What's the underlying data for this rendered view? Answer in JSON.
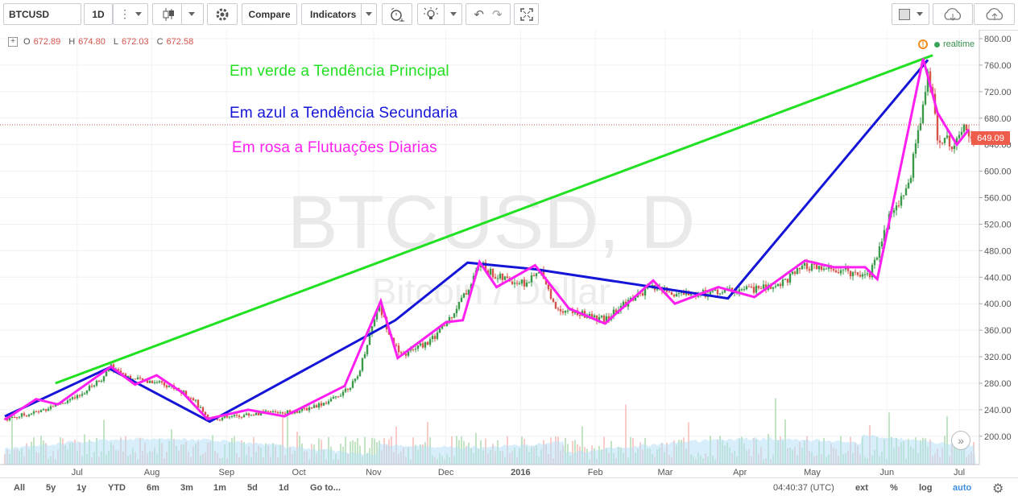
{
  "toolbar": {
    "symbol": "BTCUSD",
    "interval": "1D",
    "compare_label": "Compare",
    "indicators_label": "Indicators"
  },
  "legend": {
    "o_label": "O",
    "o_value": "672.89",
    "h_label": "H",
    "h_value": "674.80",
    "l_label": "L",
    "l_value": "672.03",
    "c_label": "C",
    "c_value": "672.58"
  },
  "annotations": {
    "green": "Em verde a Tendência Principal",
    "blue": "Em azul a Tendência Secundaria",
    "pink": "Em rosa a Flutuações Diarias"
  },
  "watermark": {
    "main": "BTCUSD, D",
    "sub": "Bitcoin / Dollar"
  },
  "status": {
    "realtime": "realtime",
    "current_price": "649.09"
  },
  "chart_data": {
    "type": "candlestick",
    "ylim": [
      160,
      805
    ],
    "y_ticks": [
      "800.00",
      "760.00",
      "720.00",
      "680.00",
      "640.00",
      "600.00",
      "560.00",
      "520.00",
      "480.00",
      "440.00",
      "400.00",
      "360.00",
      "320.00",
      "280.00",
      "240.00",
      "200.00"
    ],
    "x_ticks": [
      "Jul",
      "Aug",
      "Sep",
      "Oct",
      "Nov",
      "Dec",
      "2016",
      "Feb",
      "Mar",
      "Apr",
      "May",
      "Jun",
      "Jul"
    ],
    "price_path": [
      {
        "date": "2015-06-01",
        "price": 226
      },
      {
        "date": "2015-06-15",
        "price": 237
      },
      {
        "date": "2015-06-22",
        "price": 248
      },
      {
        "date": "2015-07-01",
        "price": 258
      },
      {
        "date": "2015-07-12",
        "price": 290
      },
      {
        "date": "2015-07-15",
        "price": 305
      },
      {
        "date": "2015-07-25",
        "price": 285
      },
      {
        "date": "2015-08-05",
        "price": 282
      },
      {
        "date": "2015-08-18",
        "price": 258
      },
      {
        "date": "2015-08-24",
        "price": 225
      },
      {
        "date": "2015-09-01",
        "price": 228
      },
      {
        "date": "2015-09-15",
        "price": 235
      },
      {
        "date": "2015-10-01",
        "price": 238
      },
      {
        "date": "2015-10-15",
        "price": 255
      },
      {
        "date": "2015-10-25",
        "price": 285
      },
      {
        "date": "2015-11-03",
        "price": 400
      },
      {
        "date": "2015-11-06",
        "price": 370
      },
      {
        "date": "2015-11-12",
        "price": 320
      },
      {
        "date": "2015-11-25",
        "price": 345
      },
      {
        "date": "2015-12-01",
        "price": 370
      },
      {
        "date": "2015-12-10",
        "price": 420
      },
      {
        "date": "2015-12-15",
        "price": 460
      },
      {
        "date": "2015-12-22",
        "price": 440
      },
      {
        "date": "2016-01-03",
        "price": 430
      },
      {
        "date": "2016-01-10",
        "price": 450
      },
      {
        "date": "2016-01-15",
        "price": 395
      },
      {
        "date": "2016-01-25",
        "price": 385
      },
      {
        "date": "2016-02-05",
        "price": 375
      },
      {
        "date": "2016-02-15",
        "price": 405
      },
      {
        "date": "2016-02-25",
        "price": 425
      },
      {
        "date": "2016-03-05",
        "price": 415
      },
      {
        "date": "2016-03-15",
        "price": 415
      },
      {
        "date": "2016-03-28",
        "price": 420
      },
      {
        "date": "2016-04-15",
        "price": 425
      },
      {
        "date": "2016-04-28",
        "price": 455
      },
      {
        "date": "2016-05-10",
        "price": 450
      },
      {
        "date": "2016-05-25",
        "price": 445
      },
      {
        "date": "2016-06-02",
        "price": 530
      },
      {
        "date": "2016-06-10",
        "price": 580
      },
      {
        "date": "2016-06-16",
        "price": 700
      },
      {
        "date": "2016-06-18",
        "price": 755
      },
      {
        "date": "2016-06-22",
        "price": 655
      },
      {
        "date": "2016-06-28",
        "price": 640
      },
      {
        "date": "2016-07-03",
        "price": 675
      },
      {
        "date": "2016-07-07",
        "price": 649
      }
    ],
    "trendlines": {
      "main_green": [
        {
          "date": "2015-06-22",
          "price": 280
        },
        {
          "date": "2016-06-20",
          "price": 775
        }
      ],
      "secondary_blue": [
        {
          "date": "2015-06-01",
          "price": 230
        },
        {
          "date": "2015-07-14",
          "price": 303
        },
        {
          "date": "2015-08-25",
          "price": 222
        },
        {
          "date": "2015-11-10",
          "price": 375
        },
        {
          "date": "2015-12-10",
          "price": 462
        },
        {
          "date": "2016-01-07",
          "price": 452
        },
        {
          "date": "2016-03-27",
          "price": 408
        },
        {
          "date": "2016-06-18",
          "price": 768
        }
      ],
      "fluctuation_pink": [
        {
          "date": "2015-06-01",
          "price": 225
        },
        {
          "date": "2015-06-14",
          "price": 256
        },
        {
          "date": "2015-06-23",
          "price": 248
        },
        {
          "date": "2015-07-15",
          "price": 305
        },
        {
          "date": "2015-07-25",
          "price": 278
        },
        {
          "date": "2015-08-03",
          "price": 292
        },
        {
          "date": "2015-08-14",
          "price": 265
        },
        {
          "date": "2015-08-24",
          "price": 226
        },
        {
          "date": "2015-09-10",
          "price": 240
        },
        {
          "date": "2015-09-25",
          "price": 230
        },
        {
          "date": "2015-10-20",
          "price": 276
        },
        {
          "date": "2015-11-04",
          "price": 404
        },
        {
          "date": "2015-11-11",
          "price": 318
        },
        {
          "date": "2015-11-21",
          "price": 345
        },
        {
          "date": "2015-12-01",
          "price": 372
        },
        {
          "date": "2015-12-08",
          "price": 375
        },
        {
          "date": "2015-12-15",
          "price": 463
        },
        {
          "date": "2015-12-22",
          "price": 425
        },
        {
          "date": "2016-01-07",
          "price": 458
        },
        {
          "date": "2016-01-21",
          "price": 393
        },
        {
          "date": "2016-02-05",
          "price": 370
        },
        {
          "date": "2016-02-25",
          "price": 435
        },
        {
          "date": "2016-03-05",
          "price": 400
        },
        {
          "date": "2016-03-23",
          "price": 425
        },
        {
          "date": "2016-04-07",
          "price": 410
        },
        {
          "date": "2016-04-28",
          "price": 465
        },
        {
          "date": "2016-05-10",
          "price": 455
        },
        {
          "date": "2016-05-23",
          "price": 455
        },
        {
          "date": "2016-05-28",
          "price": 437
        },
        {
          "date": "2016-06-16",
          "price": 770
        },
        {
          "date": "2016-06-22",
          "price": 688
        },
        {
          "date": "2016-06-30",
          "price": 640
        },
        {
          "date": "2016-07-05",
          "price": 663
        }
      ]
    },
    "current_price": 649.09,
    "current_price_line": 670
  },
  "colors": {
    "green_trend": "#22e022",
    "blue_trend": "#1515d8",
    "pink_trend": "#ff1ff0",
    "up_candle": "#3a9a4a",
    "down_candle": "#d4534a",
    "volume": "#9fd2f2",
    "price_line": "#d4534a"
  },
  "bottombar": {
    "ranges": [
      "All",
      "5y",
      "1y",
      "YTD",
      "6m",
      "3m",
      "1m",
      "5d",
      "1d"
    ],
    "goto": "Go to...",
    "time": "04:40:37 (UTC)",
    "ext": "ext",
    "pct": "%",
    "log": "log",
    "auto": "auto"
  }
}
